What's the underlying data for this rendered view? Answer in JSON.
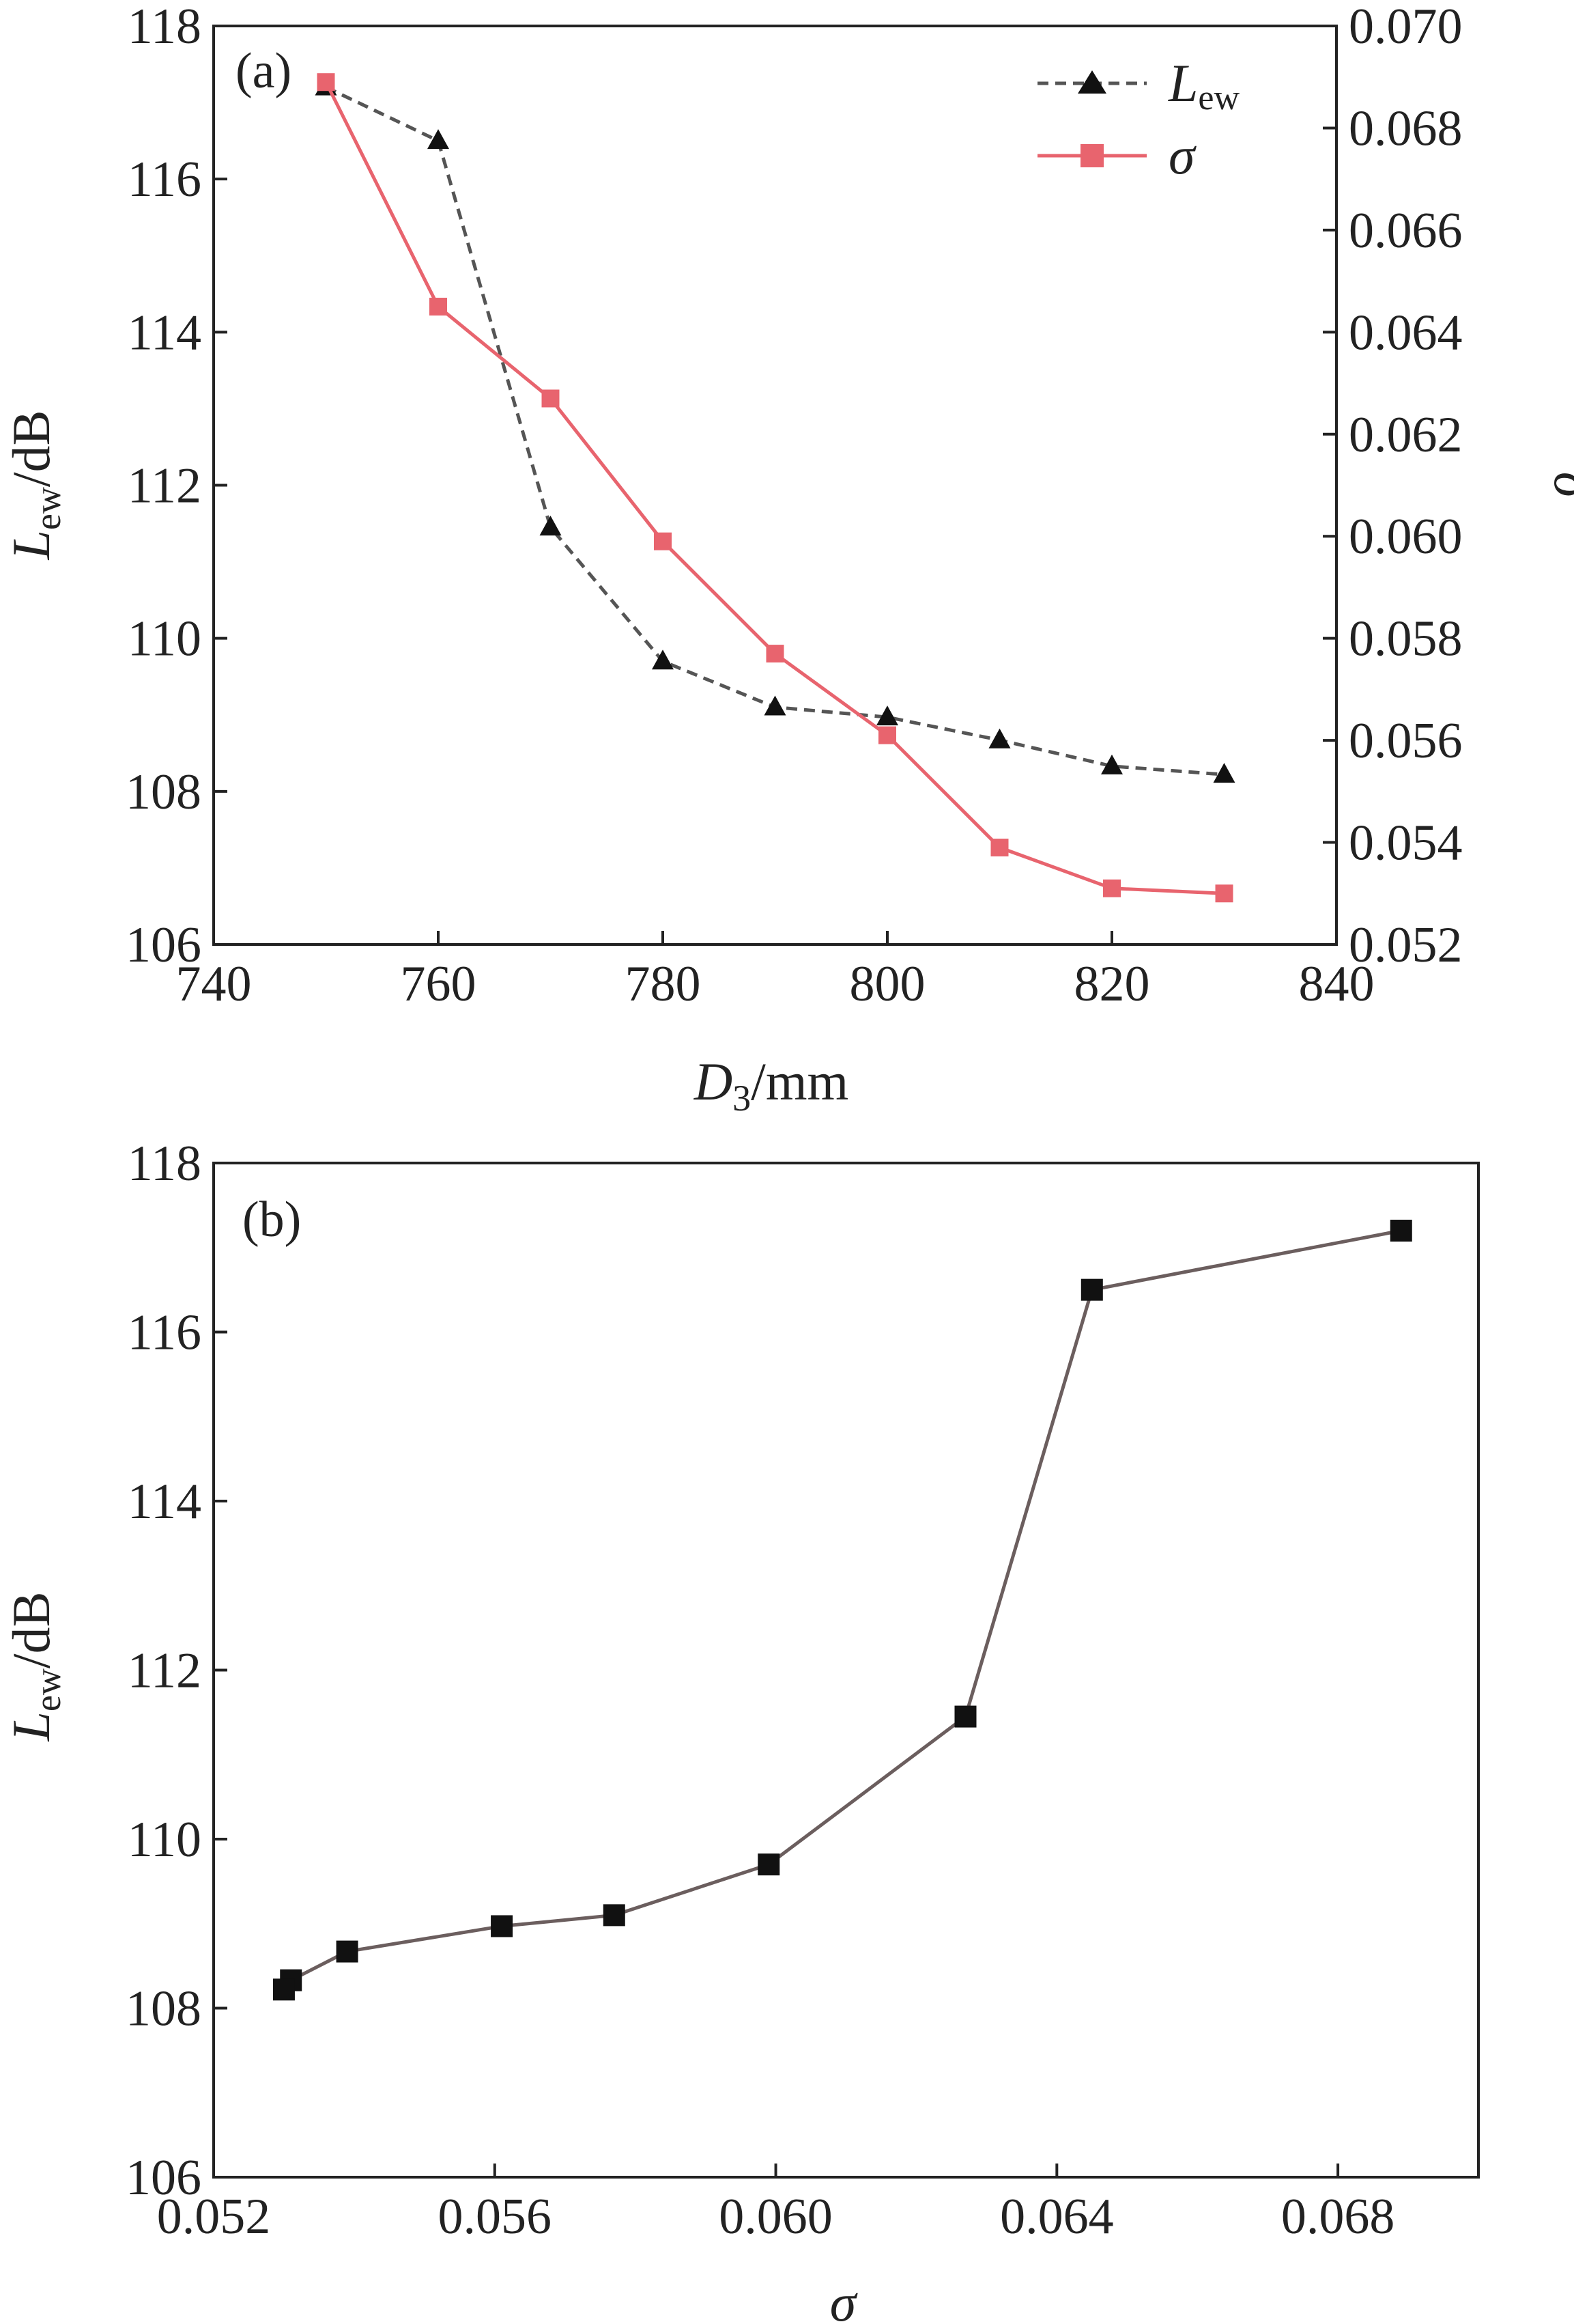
{
  "colors": {
    "axis": "#222222",
    "lew_series": "#555555",
    "sigma_series": "#e8646e",
    "panel_b_series": "#6b5e5e",
    "panel_b_marker": "#111111"
  },
  "chart_data": [
    {
      "type": "line",
      "panel_label": "(a)",
      "x": [
        750,
        760,
        770,
        780,
        790,
        800,
        810,
        820,
        830
      ],
      "xlim": [
        740,
        840
      ],
      "xticks": [
        740,
        760,
        780,
        800,
        820,
        840
      ],
      "xtick_labels": [
        "740",
        "760",
        "780",
        "800",
        "820",
        "840"
      ],
      "xlabel": {
        "main": "D",
        "sub": "3",
        "unit": "/mm"
      },
      "ylim_left": [
        106,
        118
      ],
      "yticks_left": [
        106,
        108,
        110,
        112,
        114,
        116,
        118
      ],
      "ytick_labels_left": [
        "106",
        "108",
        "110",
        "112",
        "114",
        "116",
        "118"
      ],
      "ylabel_left": {
        "main": "L",
        "sub": "ew",
        "unit": "/dB"
      },
      "ylim_right": [
        0.052,
        0.07
      ],
      "yticks_right": [
        0.052,
        0.054,
        0.056,
        0.058,
        0.06,
        0.062,
        0.064,
        0.066,
        0.068,
        0.07
      ],
      "ytick_labels_right": [
        "0.052",
        "0.054",
        "0.056",
        "0.058",
        "0.060",
        "0.062",
        "0.064",
        "0.066",
        "0.068",
        "0.070"
      ],
      "ylabel_right": "σ",
      "legend_position": "top-right",
      "series": [
        {
          "name": "L",
          "name_sub": "ew",
          "axis": "left",
          "marker": "triangle",
          "line_style": "dashed",
          "values": [
            117.2,
            116.5,
            111.45,
            109.7,
            109.1,
            108.97,
            108.67,
            108.33,
            108.22
          ]
        },
        {
          "name": "σ",
          "name_sub": "",
          "axis": "right",
          "marker": "square",
          "line_style": "solid",
          "values": [
            0.0689,
            0.0645,
            0.0627,
            0.0599,
            0.0577,
            0.0561,
            0.0539,
            0.0531,
            0.053
          ]
        }
      ]
    },
    {
      "type": "line",
      "panel_label": "(b)",
      "x": [
        0.0689,
        0.0645,
        0.0627,
        0.0599,
        0.0577,
        0.0561,
        0.0539,
        0.0531,
        0.053
      ],
      "y": [
        117.2,
        116.5,
        111.45,
        109.7,
        109.1,
        108.97,
        108.67,
        108.33,
        108.22
      ],
      "xlim": [
        0.052,
        0.07
      ],
      "xticks": [
        0.052,
        0.056,
        0.06,
        0.064,
        0.068
      ],
      "xtick_labels": [
        "0.052",
        "0.056",
        "0.060",
        "0.064",
        "0.068"
      ],
      "xlabel": "σ",
      "ylim": [
        106,
        118
      ],
      "yticks": [
        106,
        108,
        110,
        112,
        114,
        116,
        118
      ],
      "ytick_labels": [
        "106",
        "108",
        "110",
        "112",
        "114",
        "116",
        "118"
      ],
      "ylabel": {
        "main": "L",
        "sub": "ew",
        "unit": "/dB"
      },
      "marker": "square"
    }
  ]
}
